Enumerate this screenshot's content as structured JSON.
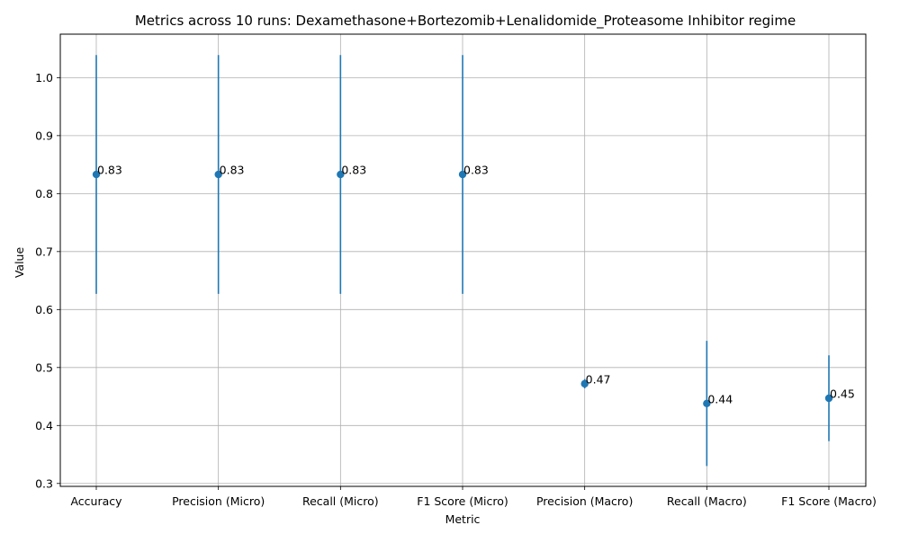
{
  "chart_data": {
    "type": "scatter",
    "title": "Metrics across 10 runs: Dexamethasone+Bortezomib+Lenalidomide_Proteasome Inhibitor regime",
    "xlabel": "Metric",
    "ylabel": "Value",
    "categories": [
      "Accuracy",
      "Precision (Micro)",
      "Recall (Micro)",
      "F1 Score (Micro)",
      "Precision (Macro)",
      "Recall (Macro)",
      "F1 Score (Macro)"
    ],
    "values": [
      0.833,
      0.833,
      0.833,
      0.833,
      0.472,
      0.438,
      0.447
    ],
    "error": [
      0.206,
      0.206,
      0.206,
      0.206,
      0.008,
      0.108,
      0.074
    ],
    "data_labels": [
      "0.83",
      "0.83",
      "0.83",
      "0.83",
      "0.47",
      "0.44",
      "0.45"
    ],
    "ylim": [
      0.295,
      1.075
    ],
    "yticks": [
      0.3,
      0.4,
      0.5,
      0.6,
      0.7,
      0.8,
      0.9,
      1.0
    ],
    "ytick_labels": [
      "0.3",
      "0.4",
      "0.5",
      "0.6",
      "0.7",
      "0.8",
      "0.9",
      "1.0"
    ],
    "grid": true,
    "series_color": "#1f77b4"
  }
}
